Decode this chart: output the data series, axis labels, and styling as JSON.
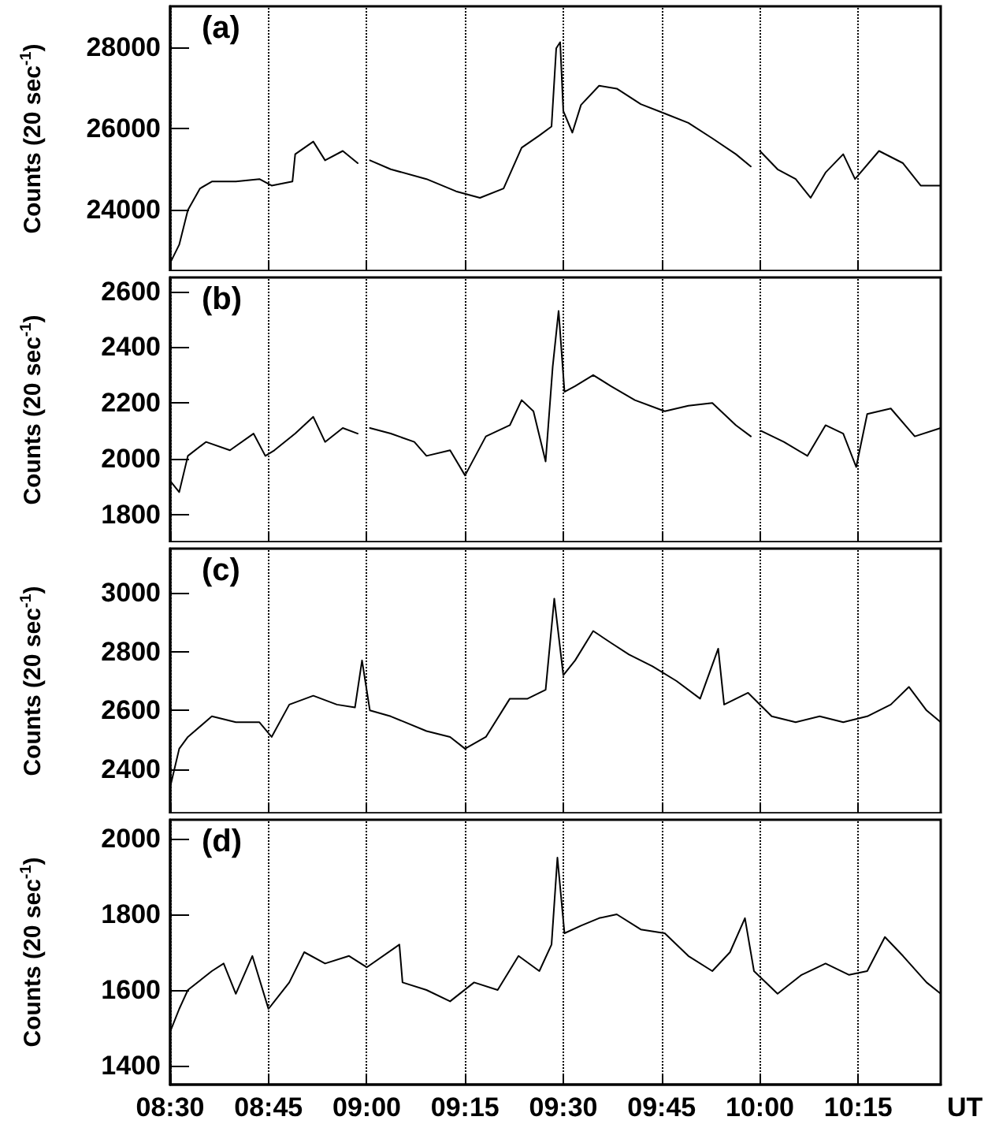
{
  "chart_data": [
    {
      "type": "line",
      "ylabel": "Counts (20 sec$^{-1}$)",
      "annotations": [
        "(a)"
      ],
      "grid": "x",
      "tick_labels": "y",
      "xlim": [
        8.5,
        10.46
      ],
      "xticks": [
        {
          "value": 8.5,
          "label": null
        },
        {
          "value": 8.75,
          "label": null
        },
        {
          "value": 9.0,
          "label": null
        },
        {
          "value": 9.25,
          "label": null
        },
        {
          "value": 9.5,
          "label": null
        },
        {
          "value": 9.75,
          "label": null
        },
        {
          "value": 10.0,
          "label": null
        },
        {
          "value": 10.25,
          "label": null
        }
      ],
      "ylim": [
        22500,
        29000
      ],
      "yticks": [
        24000,
        26000,
        28000
      ],
      "series": [
        {
          "color": "#000000",
          "x": [
            8.5,
            8.523,
            8.545,
            8.576,
            8.606,
            8.667,
            8.727,
            8.758,
            8.811,
            8.818,
            8.864,
            8.894,
            8.939,
            8.977,
            8.985,
            8.997,
            9.008,
            9.061,
            9.152,
            9.227,
            9.288,
            9.348,
            9.394,
            9.439,
            9.47,
            9.482,
            9.492,
            9.5,
            9.523,
            9.545,
            9.591,
            9.636,
            9.697,
            9.758,
            9.818,
            9.879,
            9.939,
            9.977,
            9.982,
            9.992,
            10.0,
            10.045,
            10.091,
            10.129,
            10.167,
            10.212,
            10.242,
            10.303,
            10.364,
            10.409,
            10.46
          ],
          "values": [
            22700,
            23150,
            24000,
            24530,
            24700,
            24700,
            24760,
            24600,
            24700,
            25370,
            25680,
            25220,
            25450,
            25150,
            null,
            null,
            25220,
            25000,
            24760,
            24460,
            24300,
            24530,
            25530,
            25830,
            26050,
            27970,
            28120,
            26430,
            25900,
            26580,
            27050,
            26980,
            26600,
            26370,
            26140,
            25760,
            25370,
            25070,
            null,
            null,
            25450,
            25000,
            24760,
            24300,
            24920,
            25370,
            24760,
            25450,
            25150,
            24600,
            24600
          ]
        }
      ]
    },
    {
      "type": "line",
      "ylabel": "Counts (20 sec$^{-1}$)",
      "annotations": [
        "(b)"
      ],
      "grid": "x",
      "tick_labels": "y",
      "xlim": [
        8.5,
        10.46
      ],
      "xticks": [
        {
          "value": 8.5,
          "label": null
        },
        {
          "value": 8.75,
          "label": null
        },
        {
          "value": 9.0,
          "label": null
        },
        {
          "value": 9.25,
          "label": null
        },
        {
          "value": 9.5,
          "label": null
        },
        {
          "value": 9.75,
          "label": null
        },
        {
          "value": 10.0,
          "label": null
        },
        {
          "value": 10.25,
          "label": null
        }
      ],
      "ylim": [
        1700,
        2650
      ],
      "yticks": [
        1800,
        2000,
        2200,
        2400,
        2600
      ],
      "series": [
        {
          "color": "#000000",
          "x": [
            8.5,
            8.523,
            8.545,
            8.591,
            8.652,
            8.712,
            8.742,
            8.765,
            8.818,
            8.864,
            8.894,
            8.939,
            8.977,
            8.985,
            8.997,
            9.008,
            9.061,
            9.121,
            9.152,
            9.212,
            9.25,
            9.303,
            9.364,
            9.394,
            9.424,
            9.455,
            9.473,
            9.488,
            9.503,
            9.53,
            9.576,
            9.621,
            9.682,
            9.758,
            9.818,
            9.879,
            9.939,
            9.977,
            9.982,
            9.992,
            10.003,
            10.061,
            10.121,
            10.167,
            10.212,
            10.245,
            10.273,
            10.333,
            10.394,
            10.46
          ],
          "values": [
            1920,
            1880,
            2010,
            2060,
            2030,
            2090,
            2010,
            2030,
            2090,
            2150,
            2060,
            2110,
            2090,
            null,
            null,
            2110,
            2090,
            2060,
            2010,
            2030,
            1940,
            2080,
            2120,
            2210,
            2170,
            1990,
            2330,
            2530,
            2240,
            2260,
            2300,
            2260,
            2210,
            2170,
            2190,
            2200,
            2120,
            2080,
            null,
            null,
            2100,
            2060,
            2010,
            2120,
            2090,
            1970,
            2160,
            2180,
            2080,
            2110
          ]
        }
      ]
    },
    {
      "type": "line",
      "ylabel": "Counts (20 sec$^{-1}$)",
      "annotations": [
        "(c)"
      ],
      "grid": "x",
      "tick_labels": "y",
      "xlim": [
        8.5,
        10.46
      ],
      "xticks": [
        {
          "value": 8.5,
          "label": null
        },
        {
          "value": 8.75,
          "label": null
        },
        {
          "value": 9.0,
          "label": null
        },
        {
          "value": 9.25,
          "label": null
        },
        {
          "value": 9.5,
          "label": null
        },
        {
          "value": 9.75,
          "label": null
        },
        {
          "value": 10.0,
          "label": null
        },
        {
          "value": 10.25,
          "label": null
        }
      ],
      "ylim": [
        2250,
        3150
      ],
      "yticks": [
        2400,
        2600,
        2800,
        3000
      ],
      "series": [
        {
          "color": "#000000",
          "x": [
            8.5,
            8.523,
            8.545,
            8.606,
            8.667,
            8.727,
            8.758,
            8.803,
            8.864,
            8.924,
            8.97,
            8.988,
            9.008,
            9.061,
            9.152,
            9.212,
            9.25,
            9.303,
            9.364,
            9.409,
            9.455,
            9.477,
            9.5,
            9.53,
            9.576,
            9.621,
            9.667,
            9.727,
            9.788,
            9.848,
            9.894,
            9.909,
            9.97,
            10.03,
            10.091,
            10.152,
            10.212,
            10.273,
            10.333,
            10.379,
            10.424,
            10.46
          ],
          "values": [
            2340,
            2470,
            2510,
            2580,
            2560,
            2560,
            2510,
            2620,
            2650,
            2620,
            2610,
            2770,
            2600,
            2580,
            2530,
            2510,
            2470,
            2510,
            2640,
            2640,
            2670,
            2980,
            2720,
            2770,
            2870,
            2830,
            2790,
            2750,
            2700,
            2640,
            2810,
            2620,
            2660,
            2580,
            2560,
            2580,
            2560,
            2580,
            2620,
            2680,
            2600,
            2560
          ]
        }
      ]
    },
    {
      "type": "line",
      "xlabel": "UT",
      "ylabel": "Counts (20 sec$^{-1}$)",
      "annotations": [
        "(d)"
      ],
      "grid": "x",
      "xlim": [
        8.5,
        10.46
      ],
      "xticks": [
        {
          "value": 8.5,
          "label": "08:30"
        },
        {
          "value": 8.75,
          "label": "08:45"
        },
        {
          "value": 9.0,
          "label": "09:00"
        },
        {
          "value": 9.25,
          "label": "09:15"
        },
        {
          "value": 9.5,
          "label": "09:30"
        },
        {
          "value": 9.75,
          "label": "09:45"
        },
        {
          "value": 10.0,
          "label": "10:00"
        },
        {
          "value": 10.25,
          "label": "10:15"
        }
      ],
      "ylim": [
        1350,
        2050
      ],
      "yticks": [
        1400,
        1600,
        1800,
        2000
      ],
      "series": [
        {
          "color": "#000000",
          "x": [
            8.5,
            8.523,
            8.545,
            8.606,
            8.636,
            8.667,
            8.709,
            8.75,
            8.803,
            8.841,
            8.894,
            8.955,
            9.0,
            9.083,
            9.091,
            9.152,
            9.212,
            9.273,
            9.333,
            9.386,
            9.439,
            9.47,
            9.485,
            9.503,
            9.545,
            9.591,
            9.636,
            9.697,
            9.758,
            9.818,
            9.879,
            9.924,
            9.962,
            9.985,
            10.045,
            10.106,
            10.167,
            10.227,
            10.273,
            10.318,
            10.364,
            10.424,
            10.46
          ],
          "values": [
            1490,
            1550,
            1600,
            1650,
            1670,
            1590,
            1690,
            1550,
            1620,
            1700,
            1670,
            1690,
            1660,
            1720,
            1620,
            1600,
            1570,
            1620,
            1600,
            1690,
            1650,
            1720,
            1950,
            1750,
            1770,
            1790,
            1800,
            1760,
            1750,
            1690,
            1650,
            1700,
            1790,
            1650,
            1590,
            1640,
            1670,
            1640,
            1650,
            1740,
            1690,
            1620,
            1590
          ]
        }
      ]
    }
  ]
}
